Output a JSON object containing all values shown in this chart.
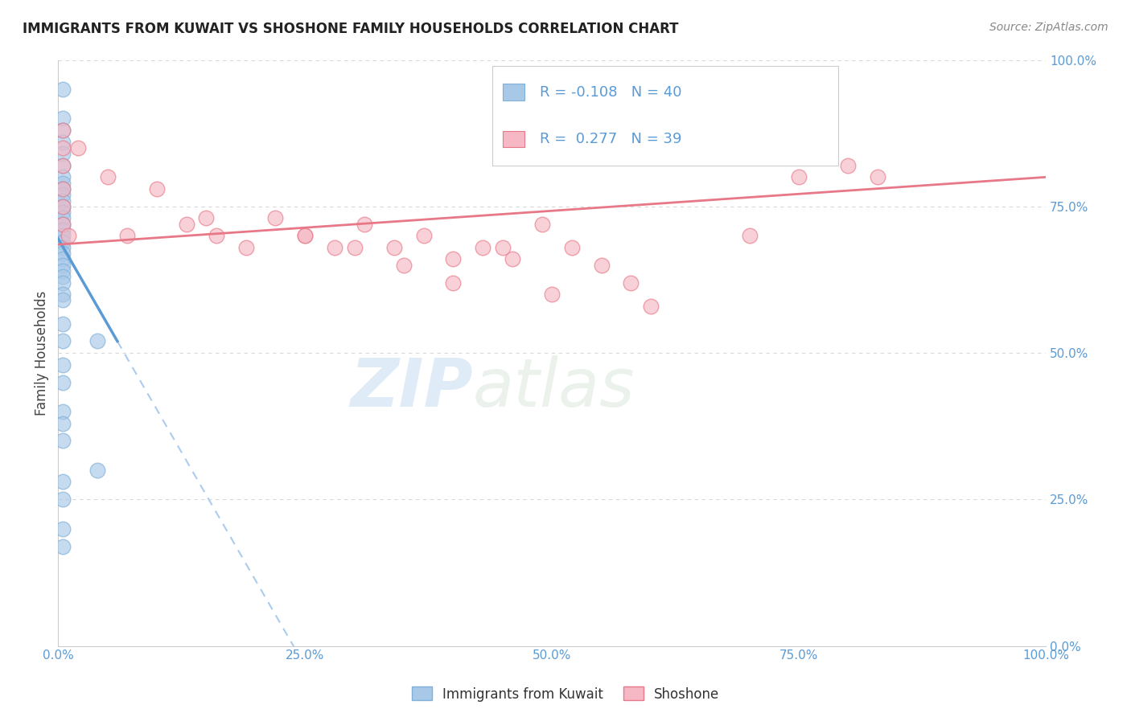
{
  "title": "IMMIGRANTS FROM KUWAIT VS SHOSHONE FAMILY HOUSEHOLDS CORRELATION CHART",
  "source": "Source: ZipAtlas.com",
  "ylabel": "Family Households",
  "legend_label1": "Immigrants from Kuwait",
  "legend_label2": "Shoshone",
  "R1": -0.108,
  "N1": 40,
  "R2": 0.277,
  "N2": 39,
  "color_blue": "#A8C8E8",
  "color_pink": "#F5B8C4",
  "edge_blue": "#7EB0D8",
  "edge_pink": "#E87888",
  "line_blue_solid": "#5B9BD5",
  "line_pink": "#E87888",
  "line_dashed": "#AACCEE",
  "xlim": [
    0.0,
    1.0
  ],
  "ylim": [
    0.0,
    1.0
  ],
  "xticks": [
    0.0,
    0.25,
    0.5,
    0.75,
    1.0
  ],
  "xtick_labels": [
    "0.0%",
    "25.0%",
    "50.0%",
    "75.0%",
    "100.0%"
  ],
  "yticks": [
    0.0,
    0.25,
    0.5,
    0.75,
    1.0
  ],
  "ytick_labels": [
    "0.0%",
    "25.0%",
    "50.0%",
    "75.0%",
    "100.0%"
  ],
  "blue_x": [
    0.005,
    0.005,
    0.005,
    0.005,
    0.005,
    0.005,
    0.005,
    0.005,
    0.005,
    0.005,
    0.005,
    0.005,
    0.005,
    0.005,
    0.005,
    0.005,
    0.005,
    0.005,
    0.005,
    0.005,
    0.005,
    0.005,
    0.005,
    0.005,
    0.005,
    0.005,
    0.005,
    0.005,
    0.005,
    0.005,
    0.005,
    0.005,
    0.005,
    0.04,
    0.04,
    0.005,
    0.005,
    0.005,
    0.005,
    0.005
  ],
  "blue_y": [
    0.95,
    0.9,
    0.88,
    0.86,
    0.84,
    0.82,
    0.8,
    0.79,
    0.78,
    0.77,
    0.76,
    0.75,
    0.74,
    0.73,
    0.72,
    0.71,
    0.7,
    0.69,
    0.68,
    0.67,
    0.66,
    0.65,
    0.64,
    0.63,
    0.62,
    0.6,
    0.59,
    0.55,
    0.52,
    0.48,
    0.45,
    0.4,
    0.38,
    0.52,
    0.3,
    0.35,
    0.28,
    0.25,
    0.2,
    0.17
  ],
  "pink_x": [
    0.005,
    0.005,
    0.005,
    0.005,
    0.005,
    0.005,
    0.01,
    0.02,
    0.05,
    0.07,
    0.1,
    0.13,
    0.16,
    0.19,
    0.22,
    0.25,
    0.28,
    0.31,
    0.34,
    0.37,
    0.4,
    0.43,
    0.46,
    0.49,
    0.52,
    0.55,
    0.58,
    0.3,
    0.35,
    0.4,
    0.5,
    0.6,
    0.7,
    0.8,
    0.83,
    0.15,
    0.25,
    0.45,
    0.75
  ],
  "pink_y": [
    0.88,
    0.85,
    0.82,
    0.78,
    0.75,
    0.72,
    0.7,
    0.85,
    0.8,
    0.7,
    0.78,
    0.72,
    0.7,
    0.68,
    0.73,
    0.7,
    0.68,
    0.72,
    0.68,
    0.7,
    0.66,
    0.68,
    0.66,
    0.72,
    0.68,
    0.65,
    0.62,
    0.68,
    0.65,
    0.62,
    0.6,
    0.58,
    0.7,
    0.82,
    0.8,
    0.73,
    0.7,
    0.68,
    0.8
  ],
  "watermark_zip": "ZIP",
  "watermark_atlas": "atlas",
  "background_color": "#FFFFFF",
  "grid_color": "#D8D8D8",
  "blue_line_x_end": 0.06,
  "blue_line_y_start": 0.695,
  "blue_line_y_at_end": 0.52,
  "pink_line_y_start": 0.685,
  "pink_line_y_end": 0.8
}
